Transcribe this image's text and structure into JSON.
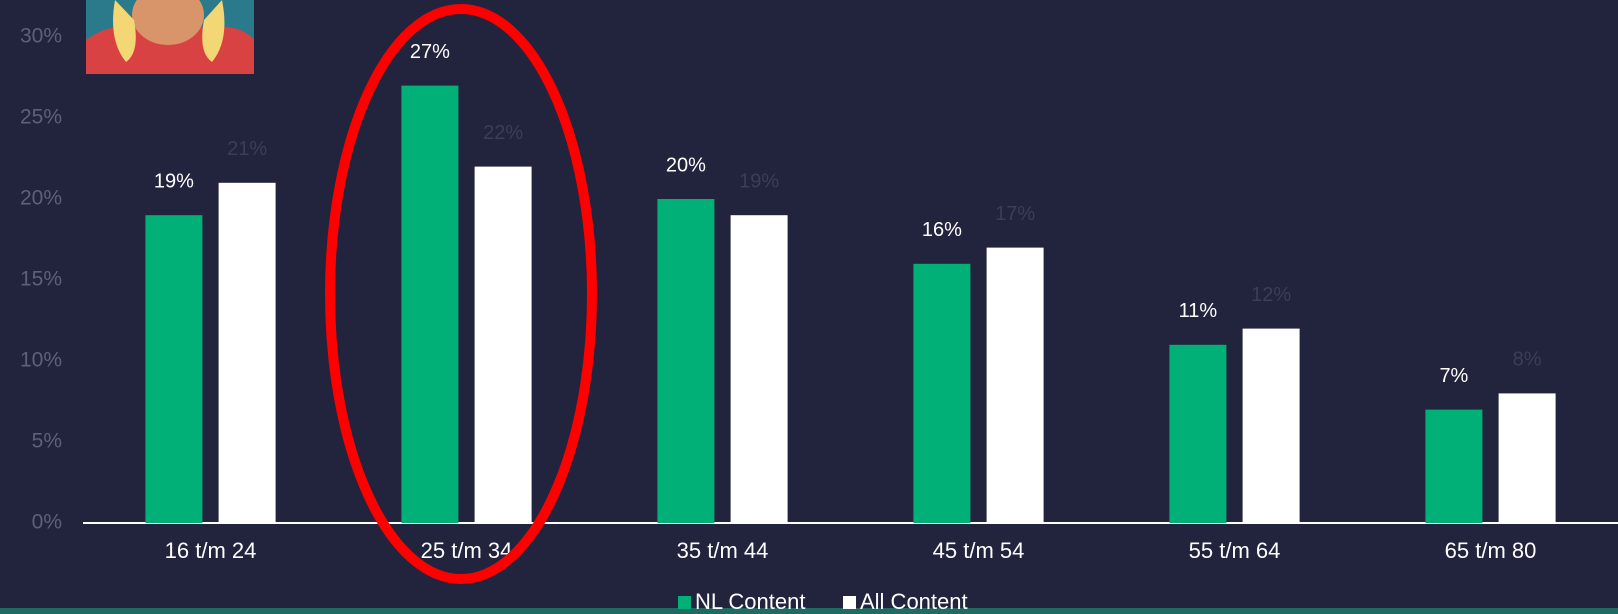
{
  "chart_data": {
    "type": "bar",
    "categories": [
      "16 t/m 24",
      "25 t/m 34",
      "35 t/m 44",
      "45 t/m 54",
      "55 t/m 64",
      "65 t/m 80"
    ],
    "series": [
      {
        "name": "NL Content",
        "color": "#00b077",
        "label_color": "#ffffff",
        "values": [
          19,
          27,
          20,
          16,
          11,
          7
        ],
        "value_labels": [
          "19%",
          "27%",
          "20%",
          "16%",
          "11%",
          "7%"
        ]
      },
      {
        "name": "All Content",
        "color": "#ffffff",
        "label_color": "#3b3e55",
        "values": [
          21,
          22,
          19,
          17,
          12,
          8
        ],
        "value_labels": [
          "21%",
          "22%",
          "19%",
          "17%",
          "12%",
          "8%"
        ]
      }
    ],
    "ylim": [
      0,
      30
    ],
    "yticks": [
      {
        "value": 0,
        "label": "0%"
      },
      {
        "value": 5,
        "label": "5%"
      },
      {
        "value": 10,
        "label": "10%"
      },
      {
        "value": 15,
        "label": "15%"
      },
      {
        "value": 20,
        "label": "20%"
      },
      {
        "value": 25,
        "label": "25%"
      },
      {
        "value": 30,
        "label": "30%"
      }
    ],
    "grid": false,
    "legend": "bottom"
  }
}
